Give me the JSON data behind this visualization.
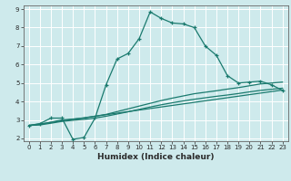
{
  "xlabel": "Humidex (Indice chaleur)",
  "bg_color": "#ceeaec",
  "grid_color": "#ffffff",
  "line_color": "#1a7a6e",
  "xlim": [
    -0.5,
    23.5
  ],
  "ylim": [
    1.85,
    9.2
  ],
  "xticks": [
    0,
    1,
    2,
    3,
    4,
    5,
    6,
    7,
    8,
    9,
    10,
    11,
    12,
    13,
    14,
    15,
    16,
    17,
    18,
    19,
    20,
    21,
    22,
    23
  ],
  "yticks": [
    2,
    3,
    4,
    5,
    6,
    7,
    8,
    9
  ],
  "series1_x": [
    0,
    1,
    2,
    3,
    4,
    5,
    6,
    7,
    8,
    9,
    10,
    11,
    12,
    13,
    14,
    15,
    16,
    17,
    18,
    19,
    20,
    21,
    22,
    23
  ],
  "series1_y": [
    2.7,
    2.8,
    3.1,
    3.1,
    1.95,
    2.05,
    3.1,
    4.9,
    6.3,
    6.6,
    7.4,
    8.85,
    8.5,
    8.25,
    8.2,
    8.0,
    7.0,
    6.5,
    5.4,
    5.0,
    5.05,
    5.1,
    4.9,
    4.6
  ],
  "series2_x": [
    0,
    1,
    2,
    3,
    4,
    5,
    6,
    7,
    8,
    9,
    10,
    11,
    12,
    13,
    14,
    15,
    16,
    17,
    18,
    19,
    20,
    21,
    22,
    23
  ],
  "series2_y": [
    2.7,
    2.75,
    2.88,
    3.0,
    3.05,
    3.1,
    3.2,
    3.3,
    3.45,
    3.6,
    3.75,
    3.9,
    4.05,
    4.18,
    4.3,
    4.42,
    4.5,
    4.58,
    4.67,
    4.75,
    4.85,
    4.95,
    5.0,
    5.05
  ],
  "series3_x": [
    0,
    1,
    2,
    3,
    4,
    5,
    6,
    7,
    8,
    9,
    10,
    11,
    12,
    13,
    14,
    15,
    16,
    17,
    18,
    19,
    20,
    21,
    22,
    23
  ],
  "series3_y": [
    2.7,
    2.73,
    2.82,
    2.92,
    2.98,
    3.03,
    3.1,
    3.2,
    3.32,
    3.44,
    3.57,
    3.7,
    3.82,
    3.93,
    4.03,
    4.12,
    4.2,
    4.28,
    4.35,
    4.43,
    4.52,
    4.6,
    4.66,
    4.72
  ],
  "series4_x": [
    0,
    23
  ],
  "series4_y": [
    2.7,
    4.62
  ]
}
